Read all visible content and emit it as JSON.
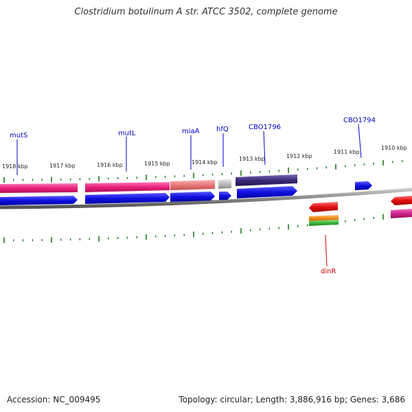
{
  "title": "Clostridium botulinum A str. ATCC 3502, complete genome",
  "accession": "Accession: NC_009495",
  "summary": "Topology: circular; Length: 3,886,916 bp; Genes: 3,686",
  "tick_labels": [
    "1918 kbp",
    "1917 kbp",
    "1916 kbp",
    "1915 kbp",
    "1914 kbp",
    "1913 kbp",
    "1912 kbp",
    "1911 kbp",
    "1910 kbp"
  ],
  "gene_labels": [
    "mutS",
    "mutL",
    "miaA",
    "hfQ",
    "CBO1796",
    "CBO1794",
    "dinR"
  ],
  "colors": {
    "blue_gene": "#1010e0",
    "pink_gene": "#e8207a",
    "salmon_gene": "#e87a7a",
    "grey_gene": "#bbbbbb",
    "purple_gene": "#3c2a78",
    "red_gene": "#e01010",
    "orange_gene": "#f0901a",
    "green_gene": "#3cb83c",
    "magenta_gene": "#d0208a",
    "backbone": "#888888",
    "tick": "#1a7a1a",
    "label_blue": "#0000cc",
    "label_red": "#cc0000"
  }
}
